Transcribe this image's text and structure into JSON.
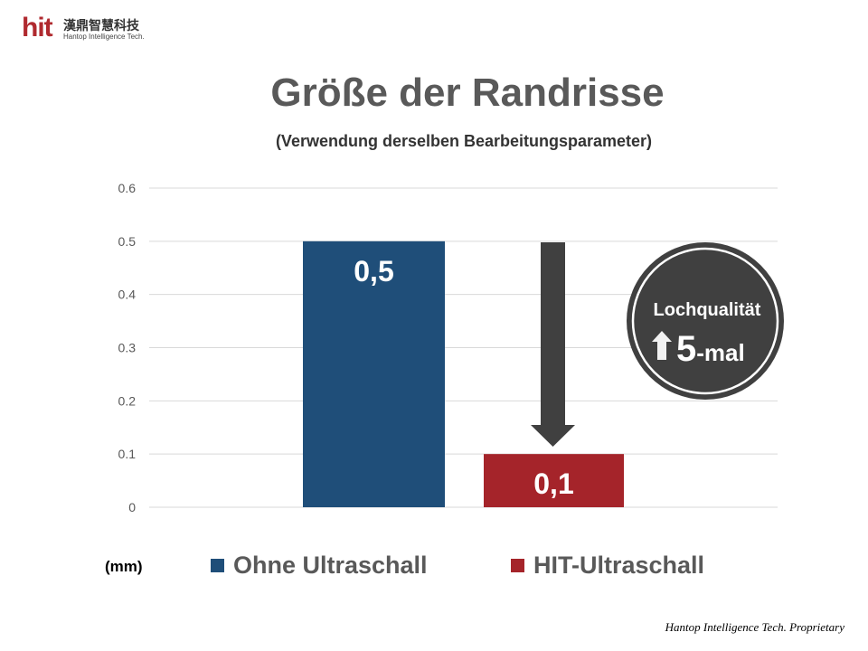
{
  "logo": {
    "mark": "hit",
    "chinese": "漢鼎智慧科技",
    "english": "Hantop Intelligence Tech."
  },
  "badge": {
    "line1": "Lochqualität",
    "number": "5",
    "suffix": "-mal",
    "icon": "up-arrow-icon"
  },
  "footer": "Hantop Intelligence Tech. Proprietary",
  "colors": {
    "blue": "#1f4e79",
    "red": "#a5242a",
    "dark": "#404040"
  },
  "chart_data": {
    "type": "bar",
    "title": "Größe der Randrisse",
    "subtitle": "(Verwendung derselben Bearbeitungsparameter)",
    "ylabel": "(mm)",
    "ylim": [
      0,
      0.6
    ],
    "yticks": [
      "0",
      "0.1",
      "0.2",
      "0.3",
      "0.4",
      "0.5",
      "0.6"
    ],
    "grid": true,
    "legend_position": "bottom",
    "series": [
      {
        "name": "Ohne Ultraschall",
        "value": 0.5,
        "label": "0,5",
        "color": "#1f4e79"
      },
      {
        "name": "HIT-Ultraschall",
        "value": 0.1,
        "label": "0,1",
        "color": "#a5242a"
      }
    ]
  }
}
